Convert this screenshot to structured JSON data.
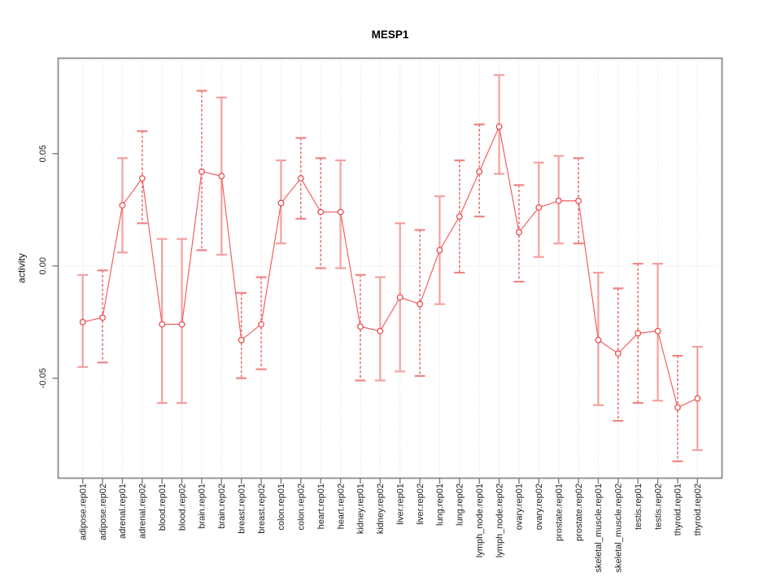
{
  "title": "MESP1",
  "colors": {
    "line": "#f26161",
    "marker": "#e84f4f",
    "bar_solid": "#f5a0a0",
    "bar_dashed": "#e95c5c",
    "bar_cap": "#f08585",
    "grid": "#d6d6d6",
    "box": "#8c8c8c",
    "tick": "#7d7d7d",
    "text": "#1e1e1e"
  },
  "chart_data": {
    "type": "line",
    "title": "MESP1",
    "xlabel": "",
    "ylabel": "activity",
    "legend_position": "none",
    "grid": "vertical dotted gridlines at every category plus dotted horizontal line at y=0",
    "ylim": [
      -0.0945,
      0.0925
    ],
    "yticks": [
      -0.05,
      0,
      0.05
    ],
    "ytick_labels": [
      "-0.05",
      "0.00",
      "0.05"
    ],
    "categories": [
      "adipose.rep01",
      "adipose.rep02",
      "adrenal.rep01",
      "adrenal.rep02",
      "blood.rep01",
      "blood.rep02",
      "brain.rep01",
      "brain.rep02",
      "breast.rep01",
      "breast.rep02",
      "colon.rep01",
      "colon.rep02",
      "heart.rep01",
      "heart.rep02",
      "kidney.rep01",
      "kidney.rep02",
      "liver.rep01",
      "liver.rep02",
      "lung.rep01",
      "lung.rep02",
      "lymph_node.rep01",
      "lymph_node.rep02",
      "ovary.rep01",
      "ovary.rep02",
      "prostate.rep01",
      "prostate.rep02",
      "skeletal_muscle.rep01",
      "skeletal_muscle.rep02",
      "testis.rep01",
      "testis.rep02",
      "thyroid.rep01",
      "thyroid.rep02"
    ],
    "series": [
      {
        "name": "activity",
        "marker": "open-circle",
        "values": [
          -0.025,
          -0.023,
          0.027,
          0.039,
          -0.026,
          -0.026,
          0.042,
          0.04,
          -0.033,
          -0.026,
          0.028,
          0.039,
          0.024,
          0.024,
          -0.027,
          -0.029,
          -0.014,
          -0.017,
          0.007,
          0.022,
          0.042,
          0.062,
          0.015,
          0.026,
          0.029,
          0.029,
          -0.033,
          -0.039,
          -0.03,
          -0.029,
          -0.063,
          -0.059
        ],
        "error_high": [
          -0.004,
          -0.002,
          0.048,
          0.06,
          0.012,
          0.012,
          0.078,
          0.075,
          -0.012,
          -0.005,
          0.047,
          0.057,
          0.048,
          0.047,
          -0.004,
          -0.005,
          0.019,
          0.016,
          0.031,
          0.047,
          0.063,
          0.085,
          0.036,
          0.046,
          0.049,
          0.048,
          -0.003,
          -0.01,
          0.001,
          0.001,
          -0.04,
          -0.036
        ],
        "error_low": [
          -0.045,
          -0.043,
          0.006,
          0.019,
          -0.061,
          -0.061,
          0.007,
          0.005,
          -0.05,
          -0.046,
          0.01,
          0.021,
          -0.001,
          -0.001,
          -0.051,
          -0.051,
          -0.047,
          -0.049,
          -0.017,
          -0.003,
          0.022,
          0.041,
          -0.007,
          0.004,
          0.01,
          0.01,
          -0.062,
          -0.069,
          -0.061,
          -0.06,
          -0.087,
          -0.082
        ],
        "bar_styles": [
          "solid",
          "dashed",
          "solid",
          "dashed",
          "solid",
          "solid",
          "dashed",
          "solid",
          "dashed",
          "dashed",
          "solid",
          "dashed",
          "dashed",
          "solid",
          "dashed",
          "solid",
          "solid",
          "dashed",
          "solid",
          "dashed",
          "dashed",
          "solid",
          "dashed",
          "solid",
          "solid",
          "dashed",
          "solid",
          "dashed",
          "dashed",
          "solid",
          "dashed",
          "solid"
        ]
      }
    ]
  }
}
